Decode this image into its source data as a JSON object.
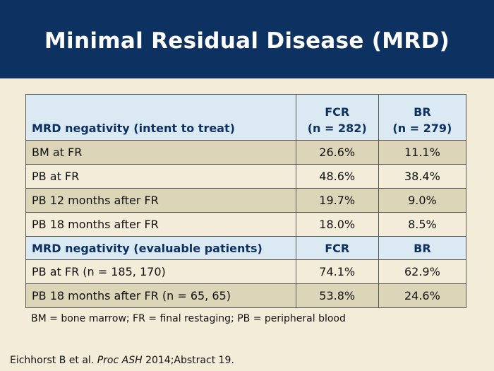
{
  "slide": {
    "title": "Minimal Residual Disease (MRD)"
  },
  "table": {
    "section1": {
      "label": "MRD negativity (intent to treat)",
      "col_fcr": [
        "FCR",
        "(n = 282)"
      ],
      "col_br": [
        "BR",
        "(n = 279)"
      ]
    },
    "rows1": [
      {
        "label": "BM at FR",
        "fcr": "26.6%",
        "br": "11.1%"
      },
      {
        "label": "PB at FR",
        "fcr": "48.6%",
        "br": "38.4%"
      },
      {
        "label": "PB 12 months after FR",
        "fcr": "19.7%",
        "br": "9.0%"
      },
      {
        "label": "PB 18 months after FR",
        "fcr": "18.0%",
        "br": "8.5%"
      }
    ],
    "section2": {
      "label": "MRD negativity (evaluable patients)",
      "col_fcr": "FCR",
      "col_br": "BR"
    },
    "rows2": [
      {
        "label": "PB at FR (n = 185, 170)",
        "fcr": "74.1%",
        "br": "62.9%"
      },
      {
        "label": "PB 18 months after FR (n = 65, 65)",
        "fcr": "53.8%",
        "br": "24.6%"
      }
    ]
  },
  "footnote": "BM = bone marrow; FR = final restaging; PB = peripheral blood",
  "citation": {
    "authors": "Eichhorst B et al.",
    "journal": "Proc ASH",
    "details": "2014;Abstract 19."
  }
}
